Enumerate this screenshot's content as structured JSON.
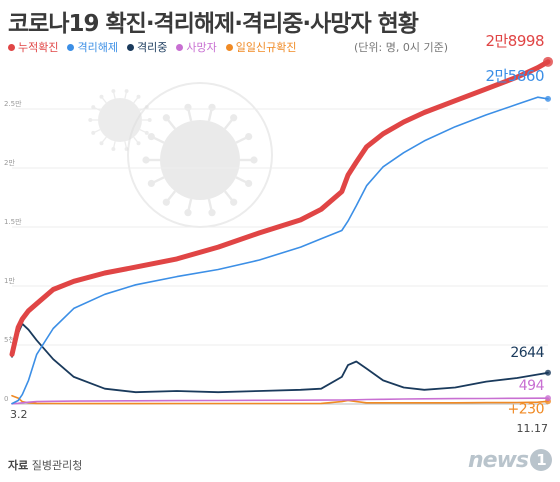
{
  "title": "코로나19 확진·격리해제·격리중·사망자 현황",
  "unit_note": "(단위: 명, 0시 기준)",
  "source": {
    "label": "자료",
    "value": "질병관리청"
  },
  "logo_text": "news",
  "logo_badge": "1",
  "colors": {
    "confirmed": "#e04545",
    "released": "#3c8fe6",
    "isolated": "#1a3a5c",
    "deaths": "#c86fd2",
    "daily": "#f08a24",
    "axis_text": "#9a9a9a"
  },
  "chart_data": {
    "type": "line",
    "x_labels": [
      "3.2",
      "11.17"
    ],
    "y_ticks": [
      "0",
      "5천",
      "1만",
      "1.5만",
      "2만",
      "2.5만"
    ],
    "ylim": [
      0,
      30000
    ],
    "x": [
      0,
      3,
      5,
      8,
      12,
      20,
      30,
      45,
      60,
      80,
      100,
      120,
      140,
      150,
      160,
      163,
      167,
      172,
      180,
      190,
      200,
      215,
      230,
      245,
      255,
      260
    ],
    "series": [
      {
        "name": "누적확진",
        "key": "confirmed",
        "values": [
          4200,
          6500,
          7200,
          7900,
          8500,
          9700,
          10400,
          11100,
          11600,
          12300,
          13300,
          14500,
          15600,
          16500,
          18000,
          19400,
          20500,
          21800,
          22900,
          23900,
          24700,
          25700,
          26700,
          27700,
          28500,
          28998
        ],
        "end_label": "2만8998"
      },
      {
        "name": "격리해제",
        "key": "released",
        "values": [
          30,
          300,
          800,
          2000,
          4200,
          6400,
          8100,
          9300,
          10100,
          10800,
          11400,
          12200,
          13300,
          14000,
          14700,
          15500,
          16800,
          18500,
          20100,
          21300,
          22300,
          23500,
          24500,
          25400,
          26000,
          25860
        ],
        "end_label": "2만5860"
      },
      {
        "name": "격리중",
        "key": "isolated",
        "values": [
          4000,
          6000,
          6800,
          6300,
          5400,
          3800,
          2300,
          1300,
          1000,
          1100,
          1000,
          1100,
          1200,
          1300,
          2300,
          3300,
          3600,
          3000,
          2000,
          1400,
          1200,
          1400,
          1900,
          2200,
          2500,
          2644
        ],
        "end_label": "2644"
      },
      {
        "name": "사망자",
        "key": "deaths",
        "values": [
          20,
          60,
          100,
          150,
          200,
          230,
          250,
          260,
          270,
          290,
          300,
          310,
          320,
          330,
          340,
          350,
          360,
          380,
          400,
          420,
          440,
          460,
          470,
          480,
          490,
          494
        ],
        "end_label": "494"
      },
      {
        "name": "일일신규확진",
        "key": "daily",
        "values": [
          700,
          500,
          200,
          100,
          50,
          40,
          30,
          30,
          30,
          40,
          40,
          40,
          40,
          50,
          200,
          300,
          200,
          100,
          100,
          100,
          100,
          100,
          120,
          130,
          150,
          230
        ],
        "end_label": "+230"
      }
    ]
  }
}
